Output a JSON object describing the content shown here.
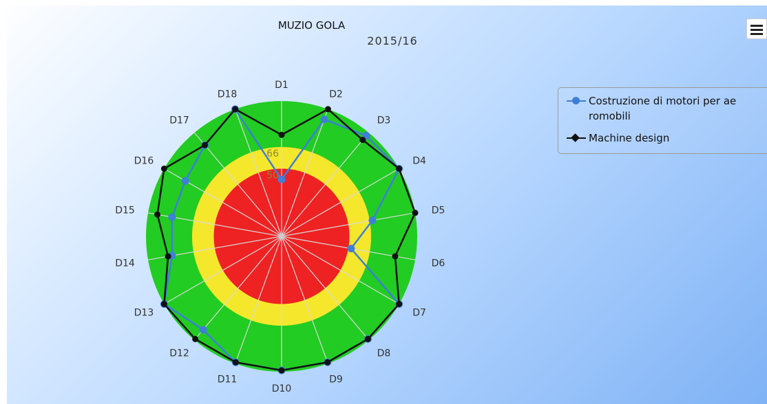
{
  "chart_data": {
    "type": "radar",
    "title": "MUZIO GOLA",
    "subtitle": "2015/16",
    "categories": [
      "D1",
      "D2",
      "D3",
      "D4",
      "D5",
      "D6",
      "D7",
      "D8",
      "D9",
      "D10",
      "D11",
      "D12",
      "D13",
      "D14",
      "D15",
      "D16",
      "D17",
      "D18"
    ],
    "radial_labels": [
      "66",
      "50"
    ],
    "bands": [
      {
        "from": 0,
        "to": 50,
        "color": "#ee2222"
      },
      {
        "from": 50,
        "to": 66,
        "color": "#f5e82c"
      },
      {
        "from": 66,
        "to": 100,
        "color": "#22cc22"
      }
    ],
    "ymax": 100,
    "series": [
      {
        "name": "Costruzione di motori per aeromobili",
        "color": "#3d7fd9",
        "values": [
          42,
          92,
          97,
          100,
          68,
          52,
          100,
          99,
          99,
          99,
          99,
          90,
          100,
          82,
          82,
          82,
          88,
          100
        ]
      },
      {
        "name": "Machine design",
        "color": "#111111",
        "values": [
          75,
          100,
          93,
          100,
          100,
          85,
          100,
          99,
          99,
          99,
          99,
          99,
          100,
          85,
          93,
          100,
          88,
          100
        ]
      }
    ]
  },
  "legend": {
    "items": [
      {
        "label_line1": "Costruzione di motori per ae",
        "label_line2": "romobili"
      },
      {
        "label_line1": "Machine design"
      }
    ]
  }
}
